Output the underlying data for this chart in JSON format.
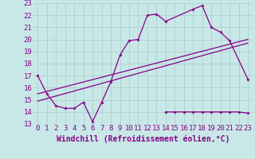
{
  "xlabel": "Windchill (Refroidissement éolien,°C)",
  "background_color": "#c8e8e8",
  "grid_color": "#b0d0d0",
  "line_color": "#880088",
  "xlim": [
    -0.5,
    23.5
  ],
  "ylim": [
    13,
    23
  ],
  "xticks": [
    0,
    1,
    2,
    3,
    4,
    5,
    6,
    7,
    8,
    9,
    10,
    11,
    12,
    13,
    14,
    15,
    16,
    17,
    18,
    19,
    20,
    21,
    22,
    23
  ],
  "yticks": [
    13,
    14,
    15,
    16,
    17,
    18,
    19,
    20,
    21,
    22,
    23
  ],
  "series1_x": [
    0,
    1,
    2,
    3,
    4,
    5,
    6,
    7,
    8,
    9,
    10,
    11,
    12,
    13,
    14,
    17,
    18,
    19,
    20,
    21,
    23
  ],
  "series1_y": [
    17.0,
    15.5,
    14.5,
    14.3,
    14.3,
    14.8,
    13.2,
    14.8,
    16.5,
    18.7,
    19.9,
    20.0,
    22.0,
    22.1,
    21.5,
    22.5,
    22.8,
    21.0,
    20.6,
    19.9,
    16.7
  ],
  "series2_x": [
    14,
    15,
    16,
    17,
    18,
    19,
    20,
    21,
    22,
    23
  ],
  "series2_y": [
    14.0,
    14.0,
    14.0,
    14.0,
    14.0,
    14.0,
    14.0,
    14.0,
    14.0,
    13.9
  ],
  "line1_x": [
    0,
    23
  ],
  "line1_y": [
    14.9,
    19.7
  ],
  "line2_x": [
    0,
    23
  ],
  "line2_y": [
    15.5,
    20.0
  ],
  "fontsize": 6.5,
  "xlabel_fontsize": 7.0
}
